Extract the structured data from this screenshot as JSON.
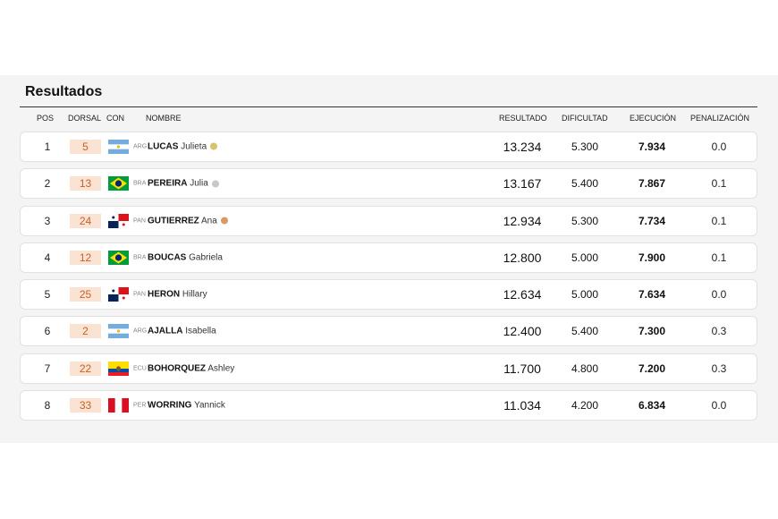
{
  "title": "Resultados",
  "headers": {
    "pos": "POS",
    "dorsal": "DORSAL",
    "con": "CON",
    "nombre": "NOMBRE",
    "resultado": "RESULTADO",
    "dificultad": "DIFICULTAD",
    "ejecucion": "EJECUCIÓN",
    "penalizacion": "PENALIZACIÓN"
  },
  "colors": {
    "gold": "#d8c36a",
    "silver": "#c8c8c8",
    "bronze": "#d99a6a",
    "dorsal_bg": "#fbe3d3",
    "dorsal_text": "#c8602a"
  },
  "rows": [
    {
      "pos": "1",
      "dorsal": "5",
      "flag": "argentina-flag-icon",
      "code": "ARG",
      "surname": "LUCAS",
      "given": "Julieta",
      "medal": "gold",
      "resultado": "13.234",
      "dificultad": "5.300",
      "ejecucion": "7.934",
      "penalizacion": "0.0"
    },
    {
      "pos": "2",
      "dorsal": "13",
      "flag": "brazil-flag-icon",
      "code": "BRA",
      "surname": "PEREIRA",
      "given": "Julia",
      "medal": "silver",
      "resultado": "13.167",
      "dificultad": "5.400",
      "ejecucion": "7.867",
      "penalizacion": "0.1"
    },
    {
      "pos": "3",
      "dorsal": "24",
      "flag": "panama-flag-icon",
      "code": "PAN",
      "surname": "GUTIERREZ",
      "given": "Ana",
      "medal": "bronze",
      "resultado": "12.934",
      "dificultad": "5.300",
      "ejecucion": "7.734",
      "penalizacion": "0.1"
    },
    {
      "pos": "4",
      "dorsal": "12",
      "flag": "brazil-flag-icon",
      "code": "BRA",
      "surname": "BOUCAS",
      "given": "Gabriela",
      "medal": "",
      "resultado": "12.800",
      "dificultad": "5.000",
      "ejecucion": "7.900",
      "penalizacion": "0.1"
    },
    {
      "pos": "5",
      "dorsal": "25",
      "flag": "panama-flag-icon",
      "code": "PAN",
      "surname": "HERON",
      "given": "Hillary",
      "medal": "",
      "resultado": "12.634",
      "dificultad": "5.000",
      "ejecucion": "7.634",
      "penalizacion": "0.0"
    },
    {
      "pos": "6",
      "dorsal": "2",
      "flag": "argentina-flag-icon",
      "code": "ARG",
      "surname": "AJALLA",
      "given": "Isabella",
      "medal": "",
      "resultado": "12.400",
      "dificultad": "5.400",
      "ejecucion": "7.300",
      "penalizacion": "0.3"
    },
    {
      "pos": "7",
      "dorsal": "22",
      "flag": "ecuador-flag-icon",
      "code": "ECU",
      "surname": "BOHORQUEZ",
      "given": "Ashley",
      "medal": "",
      "resultado": "11.700",
      "dificultad": "4.800",
      "ejecucion": "7.200",
      "penalizacion": "0.3"
    },
    {
      "pos": "8",
      "dorsal": "33",
      "flag": "peru-flag-icon",
      "code": "PER",
      "surname": "WORRING",
      "given": "Yannick",
      "medal": "",
      "resultado": "11.034",
      "dificultad": "4.200",
      "ejecucion": "6.834",
      "penalizacion": "0.0"
    }
  ]
}
